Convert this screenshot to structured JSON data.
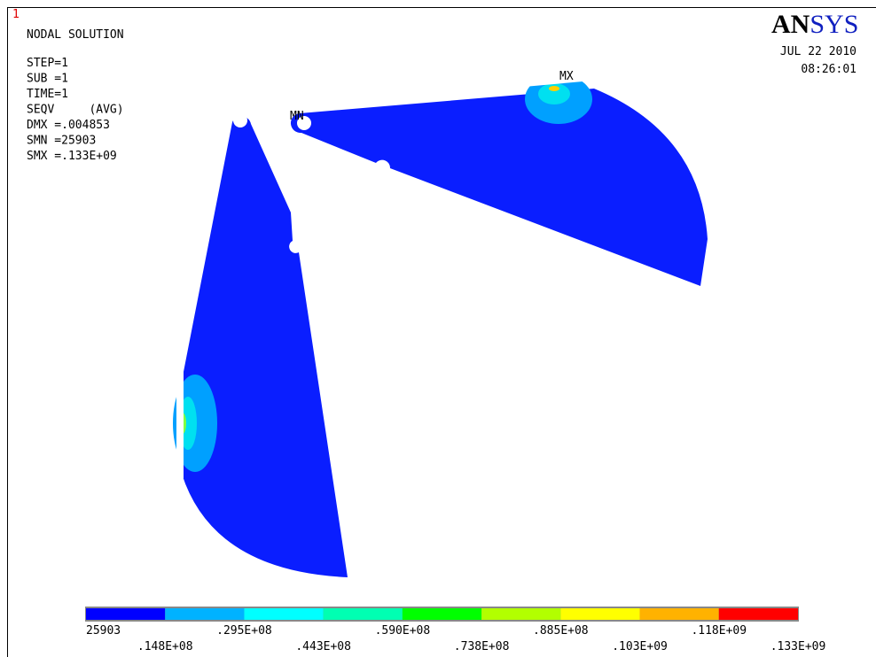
{
  "window_number": "1",
  "info_lines": [
    "NODAL SOLUTION",
    "STEP=1",
    "SUB =1",
    "TIME=1",
    "SEQV     (AVG)",
    "DMX =.004853",
    "SMN =25903",
    "SMX =.133E+09"
  ],
  "logo": {
    "bold": "AN",
    "rest": "SYS"
  },
  "date": "JUL 22 2010",
  "time": "08:26:01",
  "markers": {
    "max": "MX",
    "min": "MN"
  },
  "legend": {
    "colors": [
      "#0000ff",
      "#00b2ff",
      "#00ffff",
      "#00ffb2",
      "#00ff00",
      "#b2ff00",
      "#ffff00",
      "#ffb200",
      "#ff0000"
    ],
    "labels": [
      "25903",
      ".148E+08",
      ".295E+08",
      ".443E+08",
      ".590E+08",
      ".738E+08",
      ".885E+08",
      ".103E+09",
      ".118E+09",
      ".133E+09"
    ]
  }
}
